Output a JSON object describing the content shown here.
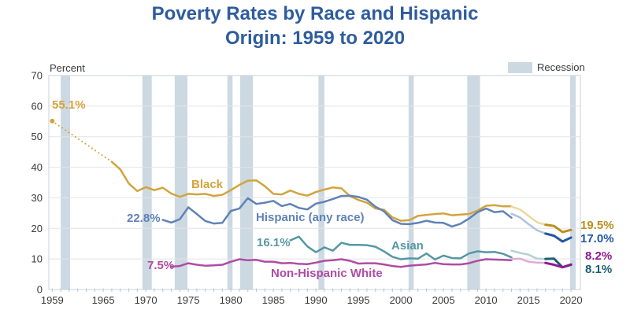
{
  "title": {
    "line1": "Poverty Rates by Race and Hispanic",
    "line2": "Origin: 1959 to 2020",
    "color": "#2E5C9E"
  },
  "legend": {
    "recession_label": "Recession"
  },
  "axes": {
    "y_axis_label": "Percent",
    "y_ticks": [
      0,
      10,
      20,
      30,
      40,
      50,
      60,
      70
    ],
    "x_ticks": [
      1959,
      1965,
      1970,
      1975,
      1980,
      1985,
      1990,
      1995,
      2000,
      2005,
      2010,
      2015,
      2020
    ]
  },
  "annotations": {
    "black_start": "55.1%",
    "black_label": "Black",
    "hispanic_start": "22.8%",
    "hispanic_label": "Hispanic (any race)",
    "asian_start": "16.1%",
    "asian_label": "Asian",
    "white_start": "7.5%",
    "white_label": "Non-Hispanic White",
    "black_end": "19.5%",
    "hispanic_end": "17.0%",
    "white_end": "8.2%",
    "asian_end": "8.1%"
  },
  "colors": {
    "recession_band": "#CCD9E2",
    "grid": "#E4E4E4",
    "frame": "#C8D2D9",
    "tick": "#BCC7CF",
    "axis_text": "#3A3A3A",
    "gold": "#D2A43C",
    "gold_light": "#EBD9A2",
    "gold_dark": "#BD8D1E",
    "blue": "#6082B6",
    "blue_light": "#AEC2DD",
    "blue_dark": "#2456A4",
    "teal": "#5697A4",
    "teal_light": "#B3CFD6",
    "teal_dark": "#1E5D6F",
    "magenta": "#AF4BA4",
    "magenta_light": "#E0AAD5",
    "magenta_dark": "#8E1A90"
  },
  "chart_data": {
    "type": "line",
    "title": "Poverty Rates by Race and Hispanic Origin: 1959 to 2020",
    "xlabel": "",
    "ylabel": "Percent",
    "ylim": [
      0,
      70
    ],
    "xlim": [
      1958.6,
      2021.1
    ],
    "grid": true,
    "legend_position": "top-right",
    "recessions": [
      [
        1960.0,
        1961.1
      ],
      [
        1969.6,
        1970.7
      ],
      [
        1973.4,
        1974.9
      ],
      [
        1979.6,
        1980.2
      ],
      [
        1981.1,
        1982.6
      ],
      [
        1990.3,
        1991.0
      ],
      [
        2000.9,
        2001.5
      ],
      [
        2007.8,
        2009.3
      ],
      [
        2019.9,
        2020.55
      ]
    ],
    "series": [
      {
        "name": "Black",
        "color_key": "gold",
        "segments": [
          {
            "style": "point",
            "color_key": "gold",
            "points": [
              [
                1959,
                55.1
              ]
            ]
          },
          {
            "style": "dotted",
            "color_key": "gold",
            "points": [
              [
                1959,
                55.1
              ],
              [
                1966,
                41.8
              ]
            ]
          },
          {
            "style": "solid",
            "color_key": "gold",
            "points": [
              [
                1966,
                41.8
              ],
              [
                1967,
                39.3
              ],
              [
                1968,
                34.7
              ],
              [
                1969,
                32.2
              ],
              [
                1970,
                33.5
              ],
              [
                1971,
                32.5
              ],
              [
                1972,
                33.3
              ],
              [
                1973,
                31.4
              ],
              [
                1974,
                30.3
              ],
              [
                1975,
                31.3
              ],
              [
                1976,
                31.1
              ],
              [
                1977,
                31.3
              ],
              [
                1978,
                30.6
              ],
              [
                1979,
                31.0
              ],
              [
                1980,
                32.5
              ],
              [
                1981,
                34.2
              ],
              [
                1982,
                35.6
              ],
              [
                1983,
                35.7
              ],
              [
                1984,
                33.8
              ],
              [
                1985,
                31.3
              ],
              [
                1986,
                31.1
              ],
              [
                1987,
                32.4
              ],
              [
                1988,
                31.3
              ],
              [
                1989,
                30.7
              ],
              [
                1990,
                31.9
              ],
              [
                1991,
                32.7
              ],
              [
                1992,
                33.4
              ],
              [
                1993,
                33.1
              ],
              [
                1994,
                30.6
              ],
              [
                1995,
                29.3
              ],
              [
                1996,
                28.4
              ],
              [
                1997,
                26.5
              ],
              [
                1998,
                26.1
              ],
              [
                1999,
                23.6
              ],
              [
                2000,
                22.5
              ],
              [
                2001,
                22.7
              ],
              [
                2002,
                24.1
              ],
              [
                2003,
                24.4
              ],
              [
                2004,
                24.7
              ],
              [
                2005,
                24.9
              ],
              [
                2006,
                24.3
              ],
              [
                2007,
                24.5
              ],
              [
                2008,
                24.7
              ],
              [
                2009,
                25.8
              ],
              [
                2010,
                27.4
              ],
              [
                2011,
                27.6
              ],
              [
                2012,
                27.2
              ],
              [
                2013,
                27.2
              ]
            ]
          },
          {
            "style": "solid",
            "color_key": "gold_light",
            "points": [
              [
                2013,
                27.1
              ],
              [
                2014,
                26.2
              ],
              [
                2015,
                24.1
              ],
              [
                2016,
                22.0
              ],
              [
                2017,
                21.2
              ]
            ]
          },
          {
            "style": "solid",
            "color_key": "gold_dark",
            "width": 3,
            "points": [
              [
                2017,
                21.2
              ],
              [
                2018,
                20.8
              ],
              [
                2019,
                18.8
              ],
              [
                2020,
                19.5
              ]
            ]
          }
        ]
      },
      {
        "name": "Hispanic (any race)",
        "color_key": "blue",
        "segments": [
          {
            "style": "solid",
            "color_key": "blue",
            "points": [
              [
                1972,
                22.8
              ],
              [
                1973,
                21.9
              ],
              [
                1974,
                23.0
              ],
              [
                1975,
                26.9
              ],
              [
                1976,
                24.7
              ],
              [
                1977,
                22.4
              ],
              [
                1978,
                21.6
              ],
              [
                1979,
                21.8
              ],
              [
                1980,
                25.7
              ],
              [
                1981,
                26.5
              ],
              [
                1982,
                29.9
              ],
              [
                1983,
                28.0
              ],
              [
                1984,
                28.4
              ],
              [
                1985,
                29.0
              ],
              [
                1986,
                27.3
              ],
              [
                1987,
                28.0
              ],
              [
                1988,
                26.7
              ],
              [
                1989,
                26.2
              ],
              [
                1990,
                28.1
              ],
              [
                1991,
                28.7
              ],
              [
                1992,
                29.6
              ],
              [
                1993,
                30.6
              ],
              [
                1994,
                30.7
              ],
              [
                1995,
                30.3
              ],
              [
                1996,
                29.4
              ],
              [
                1997,
                27.1
              ],
              [
                1998,
                25.6
              ],
              [
                1999,
                22.7
              ],
              [
                2000,
                21.5
              ],
              [
                2001,
                21.4
              ],
              [
                2002,
                21.8
              ],
              [
                2003,
                22.5
              ],
              [
                2004,
                21.9
              ],
              [
                2005,
                21.8
              ],
              [
                2006,
                20.6
              ],
              [
                2007,
                21.5
              ],
              [
                2008,
                23.2
              ],
              [
                2009,
                25.3
              ],
              [
                2010,
                26.5
              ],
              [
                2011,
                25.3
              ],
              [
                2012,
                25.6
              ],
              [
                2013,
                23.5
              ]
            ]
          },
          {
            "style": "solid",
            "color_key": "blue_light",
            "points": [
              [
                2013,
                24.8
              ],
              [
                2014,
                23.6
              ],
              [
                2015,
                21.4
              ],
              [
                2016,
                19.4
              ],
              [
                2017,
                18.3
              ]
            ]
          },
          {
            "style": "solid",
            "color_key": "blue_dark",
            "width": 3,
            "points": [
              [
                2017,
                18.3
              ],
              [
                2018,
                17.6
              ],
              [
                2019,
                15.7
              ],
              [
                2020,
                17.0
              ]
            ]
          }
        ]
      },
      {
        "name": "Asian",
        "color_key": "teal",
        "segments": [
          {
            "style": "solid",
            "color_key": "teal",
            "points": [
              [
                1987,
                16.1
              ],
              [
                1988,
                17.3
              ],
              [
                1989,
                14.1
              ],
              [
                1990,
                12.2
              ],
              [
                1991,
                13.8
              ],
              [
                1992,
                12.7
              ],
              [
                1993,
                15.3
              ],
              [
                1994,
                14.6
              ],
              [
                1995,
                14.6
              ],
              [
                1996,
                14.5
              ],
              [
                1997,
                14.0
              ],
              [
                1998,
                12.5
              ],
              [
                1999,
                10.7
              ],
              [
                2000,
                9.9
              ],
              [
                2001,
                10.2
              ],
              [
                2002,
                10.1
              ],
              [
                2003,
                11.8
              ],
              [
                2004,
                9.8
              ],
              [
                2005,
                11.1
              ],
              [
                2006,
                10.3
              ],
              [
                2007,
                10.2
              ],
              [
                2008,
                11.8
              ],
              [
                2009,
                12.5
              ],
              [
                2010,
                12.2
              ],
              [
                2011,
                12.3
              ],
              [
                2012,
                11.7
              ],
              [
                2013,
                10.5
              ]
            ]
          },
          {
            "style": "solid",
            "color_key": "teal_light",
            "points": [
              [
                2013,
                12.7
              ],
              [
                2014,
                12.0
              ],
              [
                2015,
                11.4
              ],
              [
                2016,
                10.1
              ],
              [
                2017,
                10.0
              ]
            ]
          },
          {
            "style": "solid",
            "color_key": "teal_dark",
            "width": 3,
            "points": [
              [
                2017,
                10.0
              ],
              [
                2018,
                10.1
              ],
              [
                2019,
                7.3
              ],
              [
                2020,
                8.1
              ]
            ]
          }
        ]
      },
      {
        "name": "Non-Hispanic White",
        "color_key": "magenta",
        "segments": [
          {
            "style": "solid",
            "color_key": "magenta",
            "points": [
              [
                1973,
                7.5
              ],
              [
                1974,
                7.7
              ],
              [
                1975,
                8.6
              ],
              [
                1976,
                8.1
              ],
              [
                1977,
                7.8
              ],
              [
                1978,
                7.9
              ],
              [
                1979,
                8.1
              ],
              [
                1980,
                9.1
              ],
              [
                1981,
                9.9
              ],
              [
                1982,
                9.6
              ],
              [
                1983,
                9.7
              ],
              [
                1984,
                9.1
              ],
              [
                1985,
                9.1
              ],
              [
                1986,
                8.6
              ],
              [
                1987,
                8.7
              ],
              [
                1988,
                8.4
              ],
              [
                1989,
                8.3
              ],
              [
                1990,
                8.8
              ],
              [
                1991,
                9.4
              ],
              [
                1992,
                9.6
              ],
              [
                1993,
                9.9
              ],
              [
                1994,
                9.4
              ],
              [
                1995,
                8.5
              ],
              [
                1996,
                8.6
              ],
              [
                1997,
                8.6
              ],
              [
                1998,
                8.2
              ],
              [
                1999,
                7.7
              ],
              [
                2000,
                7.4
              ],
              [
                2001,
                7.8
              ],
              [
                2002,
                8.0
              ],
              [
                2003,
                8.2
              ],
              [
                2004,
                8.7
              ],
              [
                2005,
                8.3
              ],
              [
                2006,
                8.2
              ],
              [
                2007,
                8.2
              ],
              [
                2008,
                8.6
              ],
              [
                2009,
                9.4
              ],
              [
                2010,
                9.9
              ],
              [
                2011,
                9.8
              ],
              [
                2012,
                9.7
              ],
              [
                2013,
                9.6
              ]
            ]
          },
          {
            "style": "solid",
            "color_key": "magenta_light",
            "points": [
              [
                2013,
                10.0
              ],
              [
                2014,
                10.1
              ],
              [
                2015,
                9.1
              ],
              [
                2016,
                8.8
              ],
              [
                2017,
                8.7
              ]
            ]
          },
          {
            "style": "solid",
            "color_key": "magenta_dark",
            "width": 3,
            "points": [
              [
                2017,
                8.7
              ],
              [
                2018,
                8.1
              ],
              [
                2019,
                7.3
              ],
              [
                2020,
                8.2
              ]
            ]
          }
        ]
      }
    ]
  }
}
